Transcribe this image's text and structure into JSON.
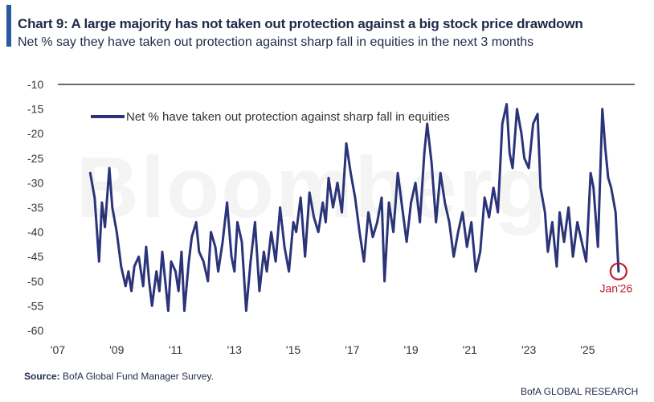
{
  "header": {
    "title": "Chart 9: A large majority has not taken out protection against a big stock price drawdown",
    "subtitle": "Net % say they have taken out protection against sharp fall in equities in the next 3 months"
  },
  "watermark": "Bloomberg",
  "footer": {
    "source_label": "Source:",
    "source_text": " BofA Global Fund Manager Survey.",
    "credit": "BofA GLOBAL RESEARCH"
  },
  "colors": {
    "series": "#2b3478",
    "annotation": "#c0192e",
    "accent": "#2c5aa0",
    "text": "#1f2a4a"
  },
  "chart_data": {
    "type": "line",
    "title": "Chart 9: A large majority has not taken out protection against a big stock price drawdown",
    "subtitle": "Net % say they have taken out protection against sharp fall in equities in the next 3 months",
    "xlabel": "",
    "ylabel": "",
    "xlim": [
      2007,
      2026.6
    ],
    "ylim": [
      -60,
      -10
    ],
    "y_ticks": [
      -10,
      -15,
      -20,
      -25,
      -30,
      -35,
      -40,
      -45,
      -50,
      -55,
      -60
    ],
    "x_ticks": [
      {
        "value": 2007,
        "label": "'07"
      },
      {
        "value": 2009,
        "label": "'09"
      },
      {
        "value": 2011,
        "label": "'11"
      },
      {
        "value": 2013,
        "label": "'13"
      },
      {
        "value": 2015,
        "label": "'15"
      },
      {
        "value": 2017,
        "label": "'17"
      },
      {
        "value": 2019,
        "label": "'19"
      },
      {
        "value": 2021,
        "label": "'21"
      },
      {
        "value": 2023,
        "label": "'23"
      },
      {
        "value": 2025,
        "label": "'25"
      }
    ],
    "grid": false,
    "legend": {
      "position": "top-left"
    },
    "series": [
      {
        "name": "Net % have taken out protection against sharp fall in equities",
        "color": "#2b3478",
        "x": [
          2008.1,
          2008.25,
          2008.4,
          2008.5,
          2008.6,
          2008.75,
          2008.85,
          2009.0,
          2009.15,
          2009.3,
          2009.4,
          2009.5,
          2009.6,
          2009.75,
          2009.9,
          2010.0,
          2010.1,
          2010.2,
          2010.35,
          2010.45,
          2010.55,
          2010.65,
          2010.75,
          2010.85,
          2011.0,
          2011.1,
          2011.2,
          2011.3,
          2011.45,
          2011.55,
          2011.7,
          2011.8,
          2011.95,
          2012.1,
          2012.2,
          2012.35,
          2012.45,
          2012.6,
          2012.75,
          2012.9,
          2013.0,
          2013.1,
          2013.25,
          2013.4,
          2013.55,
          2013.7,
          2013.85,
          2014.0,
          2014.1,
          2014.25,
          2014.4,
          2014.55,
          2014.7,
          2014.85,
          2015.0,
          2015.1,
          2015.25,
          2015.4,
          2015.55,
          2015.7,
          2015.85,
          2016.0,
          2016.1,
          2016.2,
          2016.35,
          2016.5,
          2016.65,
          2016.8,
          2016.95,
          2017.1,
          2017.25,
          2017.4,
          2017.55,
          2017.7,
          2017.85,
          2018.0,
          2018.1,
          2018.25,
          2018.4,
          2018.55,
          2018.7,
          2018.85,
          2019.0,
          2019.15,
          2019.3,
          2019.45,
          2019.55,
          2019.7,
          2019.85,
          2020.0,
          2020.15,
          2020.3,
          2020.45,
          2020.6,
          2020.75,
          2020.9,
          2021.05,
          2021.2,
          2021.35,
          2021.5,
          2021.65,
          2021.8,
          2021.95,
          2022.1,
          2022.25,
          2022.35,
          2022.45,
          2022.6,
          2022.75,
          2022.85,
          2023.0,
          2023.15,
          2023.3,
          2023.4,
          2023.55,
          2023.65,
          2023.8,
          2023.95,
          2024.05,
          2024.2,
          2024.35,
          2024.5,
          2024.65,
          2024.8,
          2024.95,
          2025.1,
          2025.2,
          2025.35,
          2025.5,
          2025.6,
          2025.7,
          2025.8,
          2025.95,
          2026.05
        ],
        "values": [
          -28,
          -33,
          -46,
          -34,
          -39,
          -27,
          -35,
          -40,
          -47,
          -51,
          -48,
          -52,
          -47,
          -45,
          -51,
          -43,
          -50,
          -55,
          -48,
          -52,
          -44,
          -50,
          -56,
          -46,
          -48,
          -52,
          -44,
          -56,
          -46,
          -41,
          -38,
          -44,
          -46,
          -50,
          -40,
          -43,
          -48,
          -42,
          -34,
          -45,
          -48,
          -38,
          -42,
          -56,
          -46,
          -38,
          -52,
          -44,
          -48,
          -40,
          -46,
          -35,
          -43,
          -48,
          -38,
          -40,
          -33,
          -45,
          -32,
          -37,
          -40,
          -34,
          -38,
          -29,
          -35,
          -30,
          -36,
          -22,
          -28,
          -33,
          -40,
          -46,
          -36,
          -41,
          -38,
          -33,
          -50,
          -34,
          -40,
          -28,
          -35,
          -42,
          -34,
          -30,
          -38,
          -24,
          -18,
          -26,
          -38,
          -28,
          -34,
          -38,
          -45,
          -40,
          -36,
          -43,
          -38,
          -48,
          -44,
          -33,
          -37,
          -31,
          -36,
          -18,
          -14,
          -24,
          -27,
          -15,
          -20,
          -25,
          -27,
          -18,
          -16,
          -31,
          -36,
          -44,
          -38,
          -47,
          -36,
          -42,
          -35,
          -45,
          -38,
          -42,
          -46,
          -28,
          -31,
          -43,
          -15,
          -23,
          -29,
          -31,
          -36,
          -48
        ]
      }
    ],
    "annotations": [
      {
        "text": "Jan'26",
        "x": 2026.05,
        "y": -48
      }
    ]
  }
}
